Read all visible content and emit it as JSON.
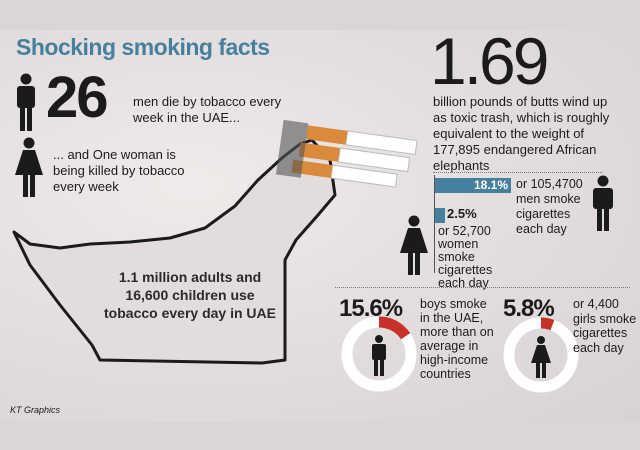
{
  "title": "Shocking smoking facts",
  "men_deaths": {
    "number": "26",
    "text": "men die by tobacco every week  in the UAE..."
  },
  "women_deaths": {
    "text": "... and One woman is being killed by tobacco every week"
  },
  "butts": {
    "number": "1.69",
    "text": "billion pounds of butts wind up as toxic trash, which is roughly equivalent to the weight of 177,895 endangered African elephants"
  },
  "adult_smokers": {
    "men": {
      "percent": "18.1%",
      "value": 18.1,
      "text": "or 105,4700 men smoke cigarettes each day"
    },
    "women": {
      "percent": "2.5%",
      "value": 2.5,
      "text": "or 52,700 women smoke cigarettes each day"
    }
  },
  "map_text": "1.1 million adults and 16,600 children use tobacco every day in UAE",
  "youth": {
    "boys": {
      "percent": "15.6%",
      "value": 15.6,
      "text": "boys smoke in the UAE, more than on average in high-income countries"
    },
    "girls": {
      "percent": "5.8%",
      "value": 5.8,
      "text": "or 4,400 girls smoke cigarettes each day"
    }
  },
  "credit": "KT Graphics",
  "colors": {
    "accent_blue": "#47809f",
    "red": "#c8302a",
    "ring": "#ffffff",
    "text": "#1b1b1b"
  },
  "icons": [
    "man-icon",
    "woman-icon",
    "cigarettes-illustration",
    "uae-map-shape"
  ]
}
